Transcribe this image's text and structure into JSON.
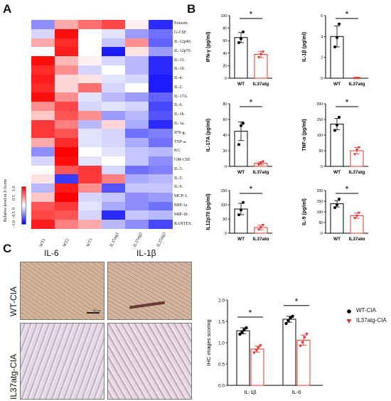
{
  "panels": {
    "a": "A",
    "b": "B",
    "c": "C"
  },
  "heatmap": {
    "columns": [
      "WT1",
      "WT2",
      "WT3",
      "IL37atg1",
      "IL37atg2",
      "IL37atg3"
    ],
    "rows": [
      "Eotaxin.",
      "G-CSF.",
      "IL-12p40.",
      "IL-12p70.",
      "IL-13.",
      "IL-10.",
      "IL-4.",
      "IL-2.",
      "IL-17A.",
      "IL-6.",
      "IL-1b.",
      "IL-1a.",
      "IFN-g.",
      "TNF-a.",
      "KC",
      "GM-CSE",
      "IL-3.",
      "IL-5.",
      "IL-9.",
      "MCP-1.",
      "MIP-1a.",
      "MIP-1b.",
      "RANTES."
    ],
    "values": [
      [
        -0.8,
        0.6,
        1.0,
        1.3,
        0.1,
        -1.5
      ],
      [
        -0.3,
        1.7,
        0.0,
        -0.2,
        -0.7,
        -1.0
      ],
      [
        0.6,
        1.5,
        0.0,
        -0.4,
        0.8,
        -1.1
      ],
      [
        0.0,
        1.6,
        0.0,
        -1.6,
        0.2,
        -0.7
      ],
      [
        1.7,
        0.5,
        0.1,
        -0.3,
        -0.5,
        -1.5
      ],
      [
        1.5,
        0.8,
        -0.3,
        0.0,
        -0.5,
        -1.5
      ],
      [
        1.6,
        0.3,
        0.2,
        -0.2,
        -0.3,
        -1.6
      ],
      [
        1.5,
        0.3,
        1.0,
        -0.3,
        0.0,
        -1.6
      ],
      [
        1.7,
        0.8,
        -0.2,
        -0.5,
        -0.7,
        -1.1
      ],
      [
        0.8,
        1.3,
        -0.3,
        -0.2,
        -0.3,
        -1.3
      ],
      [
        0.4,
        1.2,
        0.8,
        -0.7,
        -0.5,
        -1.2
      ],
      [
        1.4,
        0.9,
        -0.5,
        0.3,
        -0.6,
        -1.5
      ],
      [
        1.4,
        1.2,
        -0.2,
        -0.3,
        -1.0,
        -0.9
      ],
      [
        0.6,
        1.5,
        -0.2,
        -0.3,
        -0.6,
        -1.0
      ],
      [
        -0.8,
        1.8,
        0.0,
        -0.2,
        -0.4,
        -0.5
      ],
      [
        -0.3,
        1.7,
        -0.2,
        0.0,
        -0.4,
        -0.8
      ],
      [
        0.0,
        1.2,
        1.4,
        -0.3,
        -1.0,
        -0.9
      ],
      [
        0.2,
        -1.4,
        1.4,
        0.9,
        -0.6,
        -0.5
      ],
      [
        -0.5,
        1.6,
        0.8,
        -1.2,
        -0.4,
        -0.4
      ],
      [
        0.4,
        1.8,
        -0.3,
        -0.4,
        -0.8,
        -0.7
      ],
      [
        1.2,
        1.4,
        -0.2,
        -0.6,
        -0.8,
        -1.0
      ],
      [
        1.3,
        1.2,
        -0.3,
        -1.5,
        -0.4,
        -0.5
      ],
      [
        1.6,
        0.9,
        0.6,
        -0.5,
        -0.8,
        -1.3
      ]
    ],
    "legend_label": "Relative level in Z-Score",
    "legend_ticks": [
      "−1.0",
      "−0.5",
      "0",
      "0.5",
      "1.0"
    ],
    "colors": {
      "low": "#0000ff",
      "mid": "#ffffff",
      "high": "#ff0000"
    }
  },
  "chart_data": [
    {
      "type": "bar",
      "ylabel": "IFN-γ (pg/ml)",
      "categories": [
        "WT",
        "IL37atg"
      ],
      "values": [
        65,
        38
      ],
      "errors": [
        8,
        5
      ],
      "points": [
        [
          57,
          63,
          74
        ],
        [
          33,
          38,
          42
        ]
      ],
      "ylim": [
        0,
        100
      ],
      "yticks": [
        "0",
        "20",
        "40",
        "60",
        "80",
        "100"
      ],
      "sig": "*"
    },
    {
      "type": "bar",
      "ylabel": "IL-1β (pg/ml)",
      "categories": [
        "WT",
        "IL37atg"
      ],
      "values": [
        4.0,
        0.0
      ],
      "errors": [
        1.0,
        0.0
      ],
      "points": [
        [
          3.0,
          3.9,
          5.2
        ],
        [
          0.0,
          0.0,
          0.0
        ]
      ],
      "ylim": [
        0,
        6
      ],
      "yticks": [
        "0",
        "2",
        "4",
        "6"
      ],
      "sig": "*"
    },
    {
      "type": "bar",
      "ylabel": "IL-17A (pg/ml)",
      "categories": [
        "WT",
        "IL37atg"
      ],
      "values": [
        45,
        4
      ],
      "errors": [
        12,
        2
      ],
      "points": [
        [
          28,
          52,
          55
        ],
        [
          2,
          4,
          6
        ]
      ],
      "ylim": [
        0,
        80
      ],
      "yticks": [
        "0",
        "20",
        "40",
        "60",
        "80"
      ],
      "sig": "*"
    },
    {
      "type": "bar",
      "ylabel": "TNF-α (pg/ml)",
      "categories": [
        "WT",
        "IL37atg"
      ],
      "values": [
        135,
        50
      ],
      "errors": [
        18,
        10
      ],
      "points": [
        [
          115,
          132,
          157
        ],
        [
          38,
          52,
          60
        ]
      ],
      "ylim": [
        0,
        200
      ],
      "yticks": [
        "0",
        "50",
        "100",
        "150",
        "200"
      ],
      "sig": "*"
    },
    {
      "type": "bar",
      "ylabel": "IL12p70 (pg/ml)",
      "categories": [
        "WT",
        "IL37atg"
      ],
      "values": [
        85,
        20
      ],
      "errors": [
        20,
        8
      ],
      "points": [
        [
          65,
          82,
          108
        ],
        [
          12,
          20,
          28
        ]
      ],
      "ylim": [
        0,
        150
      ],
      "yticks": [
        "0",
        "50",
        "100",
        "150"
      ],
      "sig": "*"
    },
    {
      "type": "bar",
      "ylabel": "IL-9 (pg/ml)",
      "categories": [
        "WT",
        "IL37atg"
      ],
      "values": [
        138,
        82
      ],
      "errors": [
        15,
        12
      ],
      "points": [
        [
          120,
          133,
          160
        ],
        [
          70,
          80,
          95
        ]
      ],
      "ylim": [
        0,
        200
      ],
      "yticks": [
        "0",
        "50",
        "100",
        "150",
        "200"
      ],
      "sig": "*"
    },
    {
      "type": "bar",
      "ylabel": "IHC images scoring",
      "categories": [
        "IL-1β",
        "IL-6"
      ],
      "series": [
        {
          "name": "WT-CIA",
          "values": [
            1.28,
            1.55
          ],
          "errors": [
            0.07,
            0.07
          ],
          "points": [
            [
              1.2,
              1.25,
              1.3,
              1.35
            ],
            [
              1.45,
              1.52,
              1.58,
              1.62
            ]
          ],
          "color": "#000000"
        },
        {
          "name": "IL37atg-CIA",
          "values": [
            0.85,
            1.06
          ],
          "errors": [
            0.07,
            0.12
          ],
          "points": [
            [
              0.76,
              0.82,
              0.88,
              0.93
            ],
            [
              0.92,
              1.0,
              1.12,
              1.2
            ]
          ],
          "color": "#e8312a"
        }
      ],
      "ylim": [
        0,
        2.0
      ],
      "yticks": [
        "0.0",
        "0.5",
        "1.0",
        "1.5",
        "2.0"
      ],
      "sig": [
        "*",
        "*"
      ]
    }
  ],
  "ihc": {
    "col_titles": [
      "IL-6",
      "IL-1β"
    ],
    "row_titles": [
      "WT-CIA",
      "IL37atg-CIA"
    ],
    "scale_bar": "50 μm"
  }
}
